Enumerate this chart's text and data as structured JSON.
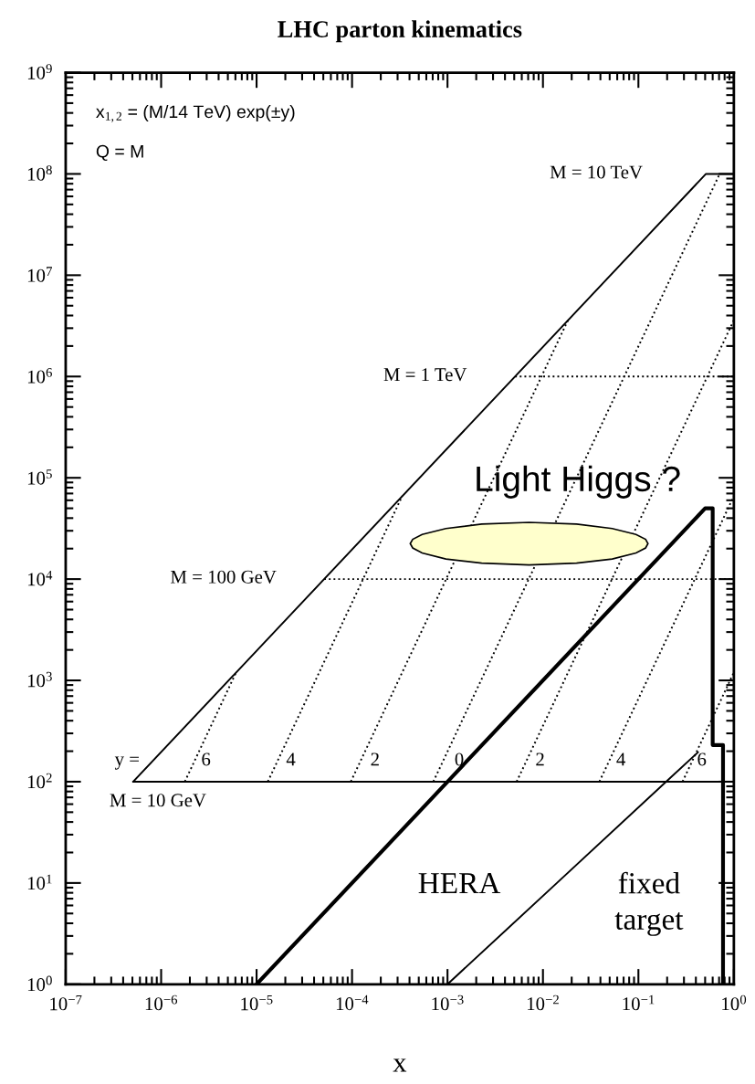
{
  "chart_data": {
    "type": "line",
    "title": "LHC parton kinematics",
    "xlabel": "x",
    "log": "xy",
    "grid": false,
    "legend": false,
    "xlim": [
      1e-07,
      1
    ],
    "ylim": [
      1,
      1000000000.0
    ],
    "xticks": [
      {
        "value": 1e-07,
        "label": "10$^{−7}$"
      },
      {
        "value": 1e-06,
        "label": "10$^{−6}$"
      },
      {
        "value": 1e-05,
        "label": "10$^{−5}$"
      },
      {
        "value": 0.0001,
        "label": "10$^{−4}$"
      },
      {
        "value": 0.001,
        "label": "10$^{−3}$"
      },
      {
        "value": 0.01,
        "label": "10$^{−2}$"
      },
      {
        "value": 0.1,
        "label": "10$^{−1}$"
      },
      {
        "value": 1,
        "label": "10$^{0}$"
      }
    ],
    "yticks": [
      {
        "value": 1,
        "label": "10$^{0}$"
      },
      {
        "value": 10,
        "label": "10$^{1}$"
      },
      {
        "value": 100,
        "label": "10$^{2}$"
      },
      {
        "value": 1000,
        "label": "10$^{3}$"
      },
      {
        "value": 10000.0,
        "label": "10$^{4}$"
      },
      {
        "value": 100000.0,
        "label": "10$^{5}$"
      },
      {
        "value": 1000000.0,
        "label": "10$^{6}$"
      },
      {
        "value": 10000000.0,
        "label": "10$^{7}$"
      },
      {
        "value": 100000000.0,
        "label": "10$^{8}$"
      },
      {
        "value": 1000000000.0,
        "label": "10$^{9}$"
      }
    ],
    "series": [
      {
        "color": "#000000",
        "line_style": "solid",
        "x": [
          5.1e-07,
          0.51,
          1
        ],
        "values": [
          100,
          100000000.0,
          100000000.0
        ]
      },
      {
        "color": "#000000",
        "line_style": "solid",
        "x": [
          5.1e-07,
          1
        ],
        "values": [
          100,
          100
        ]
      },
      {
        "color": "#000000",
        "line_style": "dotted",
        "x": [
          5.1e-05,
          1
        ],
        "values": [
          10000.0,
          10000.0
        ]
      },
      {
        "color": "#000000",
        "line_style": "dotted",
        "x": [
          0.0051,
          1
        ],
        "values": [
          1000000.0,
          1000000.0
        ]
      },
      {
        "color": "#000000",
        "line_style": "dotted",
        "x": [
          1.77e-06,
          6.1e-06
        ],
        "values": [
          100,
          1200
        ]
      },
      {
        "color": "#000000",
        "line_style": "dotted",
        "x": [
          1.31e-05,
          0.000335
        ],
        "values": [
          100,
          66000
        ]
      },
      {
        "color": "#000000",
        "line_style": "dotted",
        "x": [
          9.7e-05,
          0.0183
        ],
        "values": [
          100,
          3600000
        ]
      },
      {
        "color": "#000000",
        "line_style": "dotted",
        "x": [
          0.00071,
          0.71
        ],
        "values": [
          100,
          100000000.0
        ]
      },
      {
        "color": "#000000",
        "line_style": "dotted",
        "x": [
          0.0053,
          1
        ],
        "values": [
          100,
          3600000
        ]
      },
      {
        "color": "#000000",
        "line_style": "dotted",
        "x": [
          0.039,
          1
        ],
        "values": [
          100,
          66000
        ]
      },
      {
        "color": "#000000",
        "line_style": "dotted",
        "x": [
          0.29,
          1
        ],
        "values": [
          100,
          1200
        ]
      },
      {
        "color": "#000000",
        "line_style": "solid",
        "x": [
          1e-05,
          0.5,
          0.6,
          0.6,
          0.77,
          0.77
        ],
        "values": [
          1,
          50000,
          50000,
          230,
          230,
          1
        ]
      },
      {
        "color": "#000000",
        "line_style": "solid",
        "x": [
          0.001,
          0.014,
          0.195,
          0.42
        ],
        "values": [
          1,
          10,
          100,
          195
        ]
      },
      {
        "type": "area",
        "color": "#ffffcc",
        "x": [
          0.000407,
          0.000432,
          0.000542,
          0.000962,
          0.00228,
          0.00716,
          0.0225,
          0.0532,
          0.0944,
          0.119,
          0.126,
          0.119,
          0.0944,
          0.0532,
          0.0225,
          0.00716,
          0.00228,
          0.000962,
          0.000542,
          0.000432
        ],
        "values": [
          22400,
          24700,
          27600,
          31600,
          34900,
          36300,
          34900,
          31600,
          27600,
          24700,
          22400,
          20300,
          18100,
          15800,
          14400,
          13800,
          14400,
          15800,
          18100,
          20300
        ]
      }
    ],
    "annotations": [
      "x$_{1,2}$ = (M/14 TeV) exp(±y)",
      "Q = M",
      "M = 10 TeV",
      "M = 1 TeV",
      "M = 100 GeV",
      "M = 10 GeV",
      "y =",
      "6",
      "4",
      "2",
      "0",
      "2",
      "4",
      "6",
      "HERA",
      "fixed\ntarget",
      "Light Higgs ?"
    ]
  }
}
